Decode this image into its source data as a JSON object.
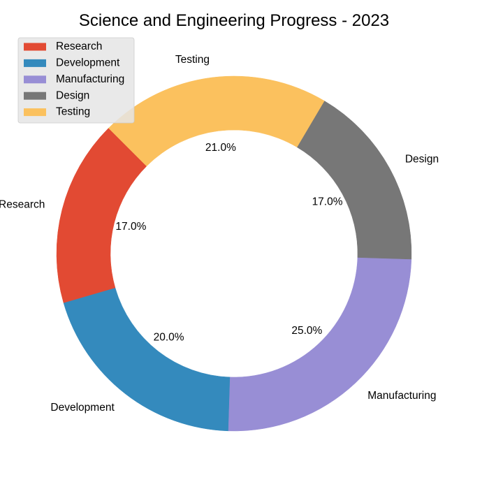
{
  "chart_data": {
    "type": "pie",
    "style": "donut",
    "title": "Science and Engineering Progress - 2023",
    "legend_position": "top-left",
    "slices": [
      {
        "label": "Research",
        "value": 17.0,
        "pct_label": "17.0%",
        "color": "#E24A33"
      },
      {
        "label": "Development",
        "value": 20.0,
        "pct_label": "20.0%",
        "color": "#348ABD"
      },
      {
        "label": "Manufacturing",
        "value": 25.0,
        "pct_label": "25.0%",
        "color": "#988ED5"
      },
      {
        "label": "Design",
        "value": 17.0,
        "pct_label": "17.0%",
        "color": "#777777"
      },
      {
        "label": "Testing",
        "value": 21.0,
        "pct_label": "21.0%",
        "color": "#FBC15E"
      }
    ]
  }
}
